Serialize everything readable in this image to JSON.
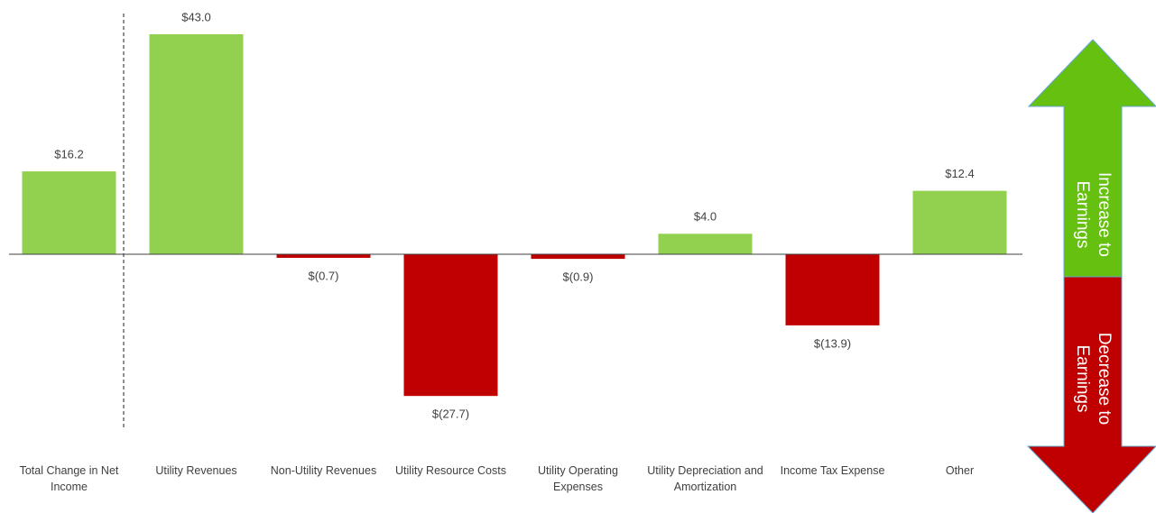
{
  "chart_data": {
    "type": "bar",
    "categories": [
      "Total Change in Net Income",
      "Utility Revenues",
      "Non-Utility Revenues",
      "Utility Resource Costs",
      "Utility Operating Expenses",
      "Utility Depreciation and Amortization",
      "Income Tax Expense",
      "Other"
    ],
    "values": [
      16.2,
      43.0,
      -0.7,
      -27.7,
      -0.9,
      4.0,
      -13.9,
      12.4
    ],
    "value_labels": [
      "$16.2",
      "$43.0",
      "$(0.7)",
      "$(27.7)",
      "$(0.9)",
      "$4.0",
      "$(13.9)",
      "$12.4"
    ],
    "colors": {
      "positive": "#92d050",
      "negative": "#c00000"
    },
    "annotations": {
      "increase": [
        "Increase to",
        "Earnings"
      ],
      "decrease": [
        "Decrease to",
        "Earnings"
      ]
    }
  }
}
